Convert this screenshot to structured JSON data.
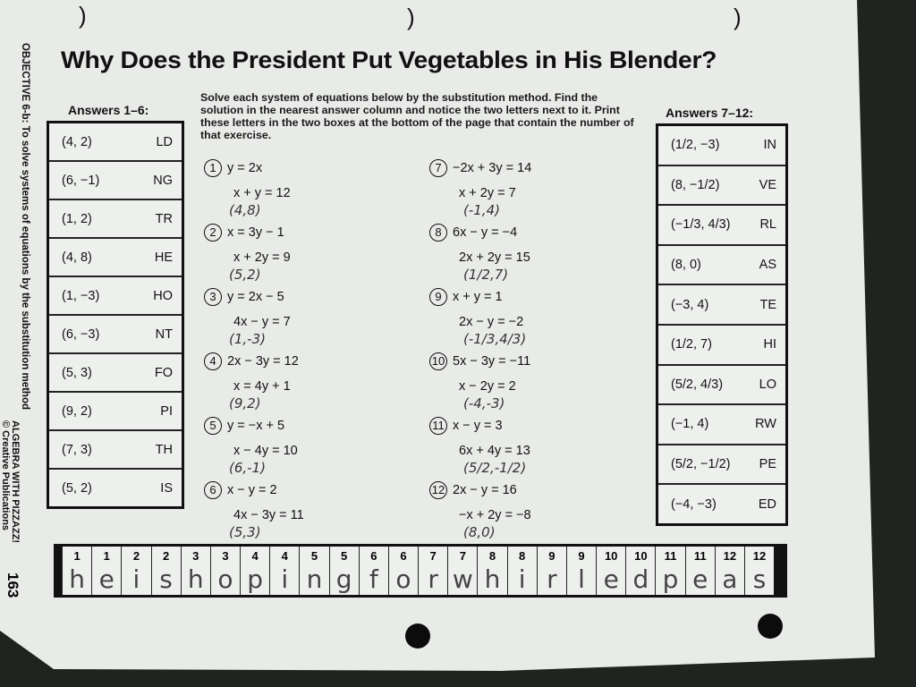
{
  "title": "Why Does the President Put Vegetables in His Blender?",
  "instructions": "Solve each system of equations below by the substitution method. Find the solution in the nearest answer column and notice the two letters next to it. Print these letters in the two boxes at the bottom of the page that contain the number of that exercise.",
  "objective": "OBJECTIVE 6-b: To solve systems of equations by the substitution method",
  "publisher_line1": "ALGEBRA WITH PIZZAZZ!",
  "publisher_line2": "© Creative Publications",
  "page_number": "163",
  "answers_left": {
    "heading": "Answers 1–6:",
    "items": [
      {
        "pair": "(4, 2)",
        "code": "LD"
      },
      {
        "pair": "(6, −1)",
        "code": "NG"
      },
      {
        "pair": "(1, 2)",
        "code": "TR"
      },
      {
        "pair": "(4, 8)",
        "code": "HE"
      },
      {
        "pair": "(1, −3)",
        "code": "HO"
      },
      {
        "pair": "(6, −3)",
        "code": "NT"
      },
      {
        "pair": "(5, 3)",
        "code": "FO"
      },
      {
        "pair": "(9, 2)",
        "code": "PI"
      },
      {
        "pair": "(7, 3)",
        "code": "TH"
      },
      {
        "pair": "(5, 2)",
        "code": "IS"
      }
    ]
  },
  "answers_right": {
    "heading": "Answers 7–12:",
    "items": [
      {
        "pair": "(1/2, −3)",
        "code": "IN"
      },
      {
        "pair": "(8, −1/2)",
        "code": "VE"
      },
      {
        "pair": "(−1/3, 4/3)",
        "code": "RL"
      },
      {
        "pair": "(8, 0)",
        "code": "AS"
      },
      {
        "pair": "(−3, 4)",
        "code": "TE"
      },
      {
        "pair": "(1/2, 7)",
        "code": "HI"
      },
      {
        "pair": "(5/2, 4/3)",
        "code": "LO"
      },
      {
        "pair": "(−1, 4)",
        "code": "RW"
      },
      {
        "pair": "(5/2, −1/2)",
        "code": "PE"
      },
      {
        "pair": "(−4, −3)",
        "code": "ED"
      }
    ]
  },
  "exercises": [
    {
      "n": "1",
      "eq1": "y = 2x",
      "eq2": "x + y = 12",
      "work": "(4,8)"
    },
    {
      "n": "2",
      "eq1": "x = 3y − 1",
      "eq2": "x + 2y = 9",
      "work": "(5,2)"
    },
    {
      "n": "3",
      "eq1": "y = 2x − 5",
      "eq2": "4x − y = 7",
      "work": "(1,-3)"
    },
    {
      "n": "4",
      "eq1": "2x − 3y = 12",
      "eq2": "x = 4y + 1",
      "work": "(9,2)"
    },
    {
      "n": "5",
      "eq1": "y = −x + 5",
      "eq2": "x − 4y = 10",
      "work": "(6,-1)"
    },
    {
      "n": "6",
      "eq1": "x − y = 2",
      "eq2": "4x − 3y = 11",
      "work": "(5,3)"
    },
    {
      "n": "7",
      "eq1": "−2x + 3y = 14",
      "eq2": "x + 2y = 7",
      "work": "(-1,4)"
    },
    {
      "n": "8",
      "eq1": "6x − y = −4",
      "eq2": "2x + 2y = 15",
      "work": "(1/2,7)"
    },
    {
      "n": "9",
      "eq1": "x + y = 1",
      "eq2": "2x − y = −2",
      "work": "(-1/3,4/3)"
    },
    {
      "n": "10",
      "eq1": "5x − 3y = −11",
      "eq2": "x − 2y = 2",
      "work": "(-4,-3)"
    },
    {
      "n": "11",
      "eq1": "x − y = 3",
      "eq2": "6x + 4y = 13",
      "work": "(5/2,-1/2)"
    },
    {
      "n": "12",
      "eq1": "2x − y = 16",
      "eq2": "−x + 2y = −8",
      "work": "(8,0)"
    }
  ],
  "answer_strip": {
    "numbers": [
      "1",
      "1",
      "2",
      "2",
      "3",
      "3",
      "4",
      "4",
      "5",
      "5",
      "6",
      "6",
      "7",
      "7",
      "8",
      "8",
      "9",
      "9",
      "10",
      "10",
      "11",
      "11",
      "12",
      "12"
    ],
    "letters": [
      "h",
      "e",
      "i",
      "s",
      "h",
      "o",
      "p",
      "i",
      "n",
      "g",
      "f",
      "o",
      "r",
      "w",
      "h",
      "i",
      "r",
      "l",
      "e",
      "d",
      "p",
      "e",
      "a",
      "s"
    ]
  }
}
